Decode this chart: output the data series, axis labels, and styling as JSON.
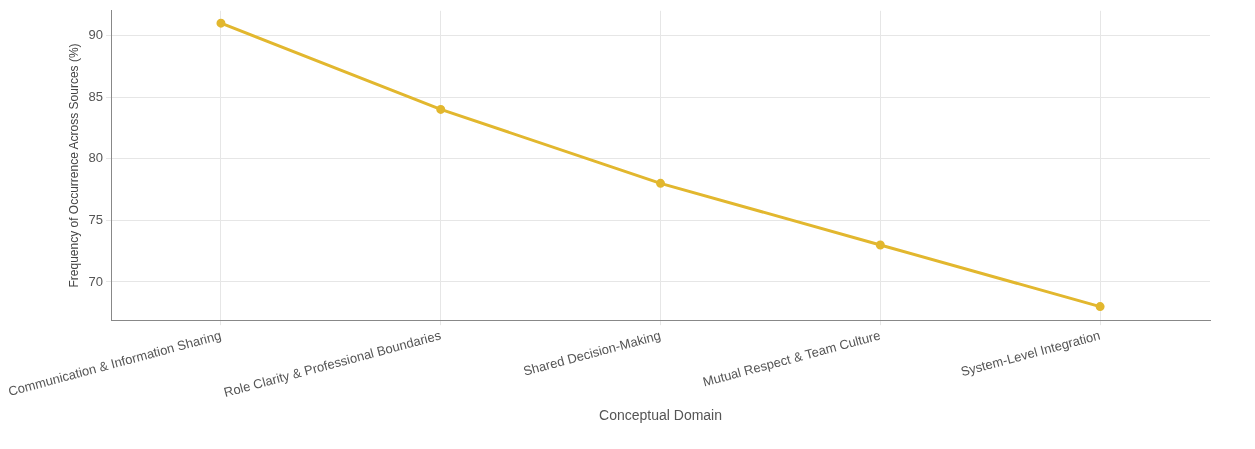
{
  "chart_data": {
    "type": "line",
    "xlabel": "Conceptual Domain",
    "ylabel": "Frequency of Occurrence Across Sources (%)",
    "categories": [
      "Communication & Information Sharing",
      "Role Clarity & Professional Boundaries",
      "Shared Decision-Making",
      "Mutual Respect & Team Culture",
      "System-Level Integration"
    ],
    "series": [
      {
        "color": "#e2b72e",
        "values": [
          91,
          84,
          78,
          73,
          68
        ]
      }
    ],
    "ylim": [
      66.9,
      92
    ],
    "yticks": [
      70,
      75,
      80,
      85,
      90
    ],
    "grid": true,
    "legend": false,
    "marker": "circle",
    "line_style": "solid"
  }
}
